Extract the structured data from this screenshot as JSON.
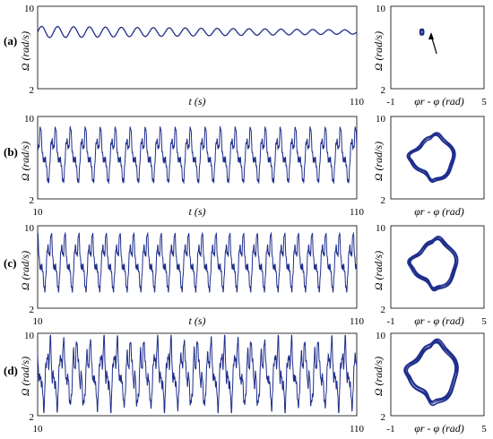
{
  "chart_data": {
    "type": "line",
    "time_series_axes": {
      "xlim": [
        10,
        110
      ],
      "ylim": [
        2,
        10
      ],
      "xlabel": "t (s)",
      "ylabel": "Ω (rad/s)",
      "xticks": [
        "10",
        "110"
      ],
      "yticks": [
        "2",
        "10"
      ]
    },
    "phase_axes": {
      "xlim": [
        -1,
        5
      ],
      "ylim": [
        2,
        10
      ],
      "xlabel": "φr - φ (rad)",
      "ylabel": "Ω (rad/s)",
      "xticks": [
        "-1",
        "5"
      ],
      "yticks": [
        "2",
        "10"
      ]
    },
    "line_color": "#1f2f8c",
    "panels": [
      {
        "label": "(a)",
        "regime": "damped oscillation",
        "mean": 7.5,
        "amp": [
          0.55,
          0.2
        ],
        "period": 5.0,
        "phase_center": [
          1.0,
          7.5
        ],
        "phase_radius": [
          0.1,
          0.25
        ],
        "annotation": "arrow"
      },
      {
        "label": "(b)",
        "regime": "periodic",
        "mean": 6.0,
        "amp": [
          2.5,
          2.5
        ],
        "period": 4.7,
        "phase_center": [
          1.6,
          6.0
        ],
        "phase_radius": [
          1.25,
          2.1
        ]
      },
      {
        "label": "(c)",
        "regime": "periodic",
        "mean": 6.2,
        "amp": [
          2.6,
          2.6
        ],
        "period": 4.3,
        "phase_center": [
          1.7,
          6.3
        ],
        "phase_radius": [
          1.3,
          2.3
        ]
      },
      {
        "label": "(d)",
        "regime": "quasi-periodic",
        "mean": 5.8,
        "amp": [
          3.0,
          3.0
        ],
        "period": 4.2,
        "phase_center": [
          1.6,
          6.2
        ],
        "phase_radius": [
          1.4,
          2.8
        ]
      }
    ]
  },
  "labels": {
    "t_axis": "t (s)",
    "omega_axis": "Ω (rad/s)",
    "phase_axis": "φr - φ (rad)",
    "t_min": "10",
    "t_max": "110",
    "y_min": "2",
    "y_max": "10",
    "p_min": "-1",
    "p_max": "5"
  }
}
